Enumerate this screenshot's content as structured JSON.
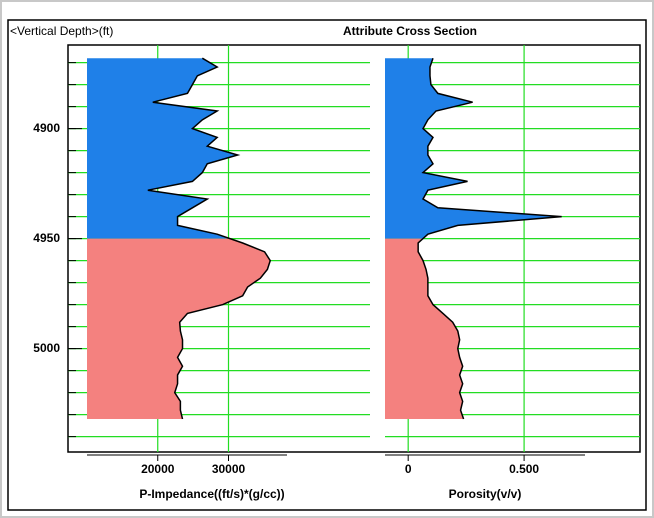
{
  "chart_data": [
    {
      "type": "log-track",
      "title": "Attribute Cross Section",
      "ylabel": "<Vertical Depth>(ft)",
      "xlabel": "P-Impedance((ft/s)*(g/cc))",
      "ylim": [
        4862,
        5047
      ],
      "yticks": [
        4900,
        4950,
        5000
      ],
      "ygrid": [
        4870,
        4880,
        4890,
        4900,
        4910,
        4920,
        4930,
        4940,
        4950,
        4960,
        4970,
        4980,
        4990,
        5000,
        5010,
        5020,
        5030,
        5040
      ],
      "xlim": [
        10000,
        50000
      ],
      "xticks": [
        20000,
        30000
      ],
      "zone_boundary": 4950,
      "colors": [
        "#1f80e8",
        "#f4817f"
      ],
      "depths": [
        4868,
        4872,
        4876,
        4880,
        4884,
        4888,
        4892,
        4896,
        4900,
        4904,
        4908,
        4912,
        4916,
        4920,
        4924,
        4928,
        4932,
        4936,
        4940,
        4944,
        4948,
        4952,
        4956,
        4960,
        4964,
        4968,
        4972,
        4976,
        4980,
        4984,
        4988,
        4992,
        4996,
        5000,
        5004,
        5008,
        5012,
        5016,
        5020,
        5024,
        5028,
        5032
      ],
      "values": [
        26300,
        28400,
        25600,
        24900,
        24200,
        19300,
        28400,
        26300,
        24900,
        28400,
        27000,
        31300,
        27000,
        26300,
        24900,
        18600,
        27000,
        24900,
        22800,
        22800,
        28400,
        32000,
        35100,
        35900,
        35500,
        34500,
        32700,
        32000,
        29200,
        24200,
        23100,
        23200,
        23500,
        23500,
        22800,
        23500,
        22800,
        22800,
        22400,
        23200,
        23200,
        23500
      ]
    },
    {
      "type": "log-track",
      "xlabel": "Porosity(v/v)",
      "ylim": [
        4862,
        5047
      ],
      "ygrid": [
        4870,
        4880,
        4890,
        4900,
        4910,
        4920,
        4930,
        4940,
        4950,
        4960,
        4970,
        4980,
        4990,
        5000,
        5010,
        5020,
        5030,
        5040
      ],
      "xlim": [
        -0.1,
        1.0
      ],
      "xticks": [
        0,
        {
          "value": 0.5,
          "label": "0.500"
        }
      ],
      "zone_boundary": 4950,
      "colors": [
        "#1f80e8",
        "#f4817f"
      ],
      "depths": [
        4868,
        4872,
        4876,
        4880,
        4884,
        4888,
        4892,
        4896,
        4900,
        4904,
        4908,
        4912,
        4916,
        4920,
        4924,
        4928,
        4932,
        4936,
        4940,
        4944,
        4948,
        4952,
        4956,
        4960,
        4964,
        4968,
        4972,
        4976,
        4980,
        4984,
        4988,
        4992,
        4996,
        5000,
        5004,
        5008,
        5012,
        5016,
        5020,
        5024,
        5028,
        5032
      ],
      "values": [
        0.107,
        0.094,
        0.094,
        0.098,
        0.128,
        0.278,
        0.12,
        0.085,
        0.064,
        0.107,
        0.085,
        0.085,
        0.107,
        0.064,
        0.256,
        0.085,
        0.064,
        0.128,
        0.662,
        0.214,
        0.085,
        0.043,
        0.043,
        0.064,
        0.077,
        0.085,
        0.085,
        0.085,
        0.107,
        0.15,
        0.192,
        0.214,
        0.222,
        0.214,
        0.222,
        0.235,
        0.222,
        0.235,
        0.222,
        0.235,
        0.226,
        0.239
      ]
    }
  ]
}
